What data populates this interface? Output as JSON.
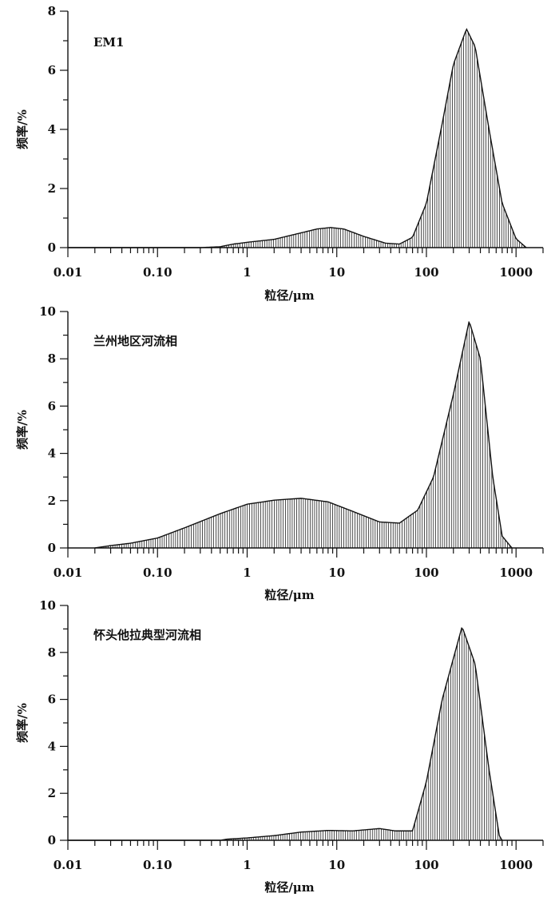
{
  "chart_data": [
    {
      "type": "area",
      "title": "EM1",
      "xlabel": "粒径/μm",
      "ylabel": "频率/%",
      "xscale": "log",
      "xlim": [
        0.01,
        2000
      ],
      "ylim": [
        0,
        8
      ],
      "x_ticks": [
        "0.01",
        "0.10",
        "1",
        "10",
        "100",
        "1000"
      ],
      "y_ticks": [
        "0",
        "2",
        "4",
        "6",
        "8"
      ],
      "grid": false,
      "points": [
        [
          0.01,
          0
        ],
        [
          0.3,
          0
        ],
        [
          0.5,
          0.03
        ],
        [
          0.7,
          0.12
        ],
        [
          1,
          0.18
        ],
        [
          2,
          0.28
        ],
        [
          4,
          0.5
        ],
        [
          6,
          0.63
        ],
        [
          8.5,
          0.68
        ],
        [
          12,
          0.63
        ],
        [
          20,
          0.38
        ],
        [
          35,
          0.15
        ],
        [
          50,
          0.12
        ],
        [
          70,
          0.35
        ],
        [
          100,
          1.5
        ],
        [
          150,
          4.2
        ],
        [
          200,
          6.2
        ],
        [
          280,
          7.4
        ],
        [
          350,
          6.8
        ],
        [
          500,
          4.0
        ],
        [
          700,
          1.5
        ],
        [
          1000,
          0.3
        ],
        [
          1300,
          0
        ]
      ]
    },
    {
      "type": "area",
      "title": "兰州地区河流相",
      "xlabel": "粒径/μm",
      "ylabel": "频率/%",
      "xscale": "log",
      "xlim": [
        0.01,
        2000
      ],
      "ylim": [
        0,
        10
      ],
      "x_ticks": [
        "0.01",
        "0.10",
        "1",
        "10",
        "100",
        "1000"
      ],
      "y_ticks": [
        "0",
        "2",
        "4",
        "6",
        "8",
        "10"
      ],
      "grid": false,
      "points": [
        [
          0.02,
          0
        ],
        [
          0.03,
          0.1
        ],
        [
          0.05,
          0.2
        ],
        [
          0.1,
          0.42
        ],
        [
          0.2,
          0.85
        ],
        [
          0.5,
          1.45
        ],
        [
          1,
          1.85
        ],
        [
          2,
          2.02
        ],
        [
          4,
          2.1
        ],
        [
          8,
          1.95
        ],
        [
          15,
          1.55
        ],
        [
          30,
          1.1
        ],
        [
          50,
          1.05
        ],
        [
          80,
          1.6
        ],
        [
          120,
          3.0
        ],
        [
          200,
          6.5
        ],
        [
          300,
          9.6
        ],
        [
          400,
          8.0
        ],
        [
          550,
          3.0
        ],
        [
          700,
          0.5
        ],
        [
          900,
          0
        ]
      ]
    },
    {
      "type": "area",
      "title": "怀头他拉典型河流相",
      "xlabel": "粒径/μm",
      "ylabel": "频率/%",
      "xscale": "log",
      "xlim": [
        0.01,
        2000
      ],
      "ylim": [
        0,
        10
      ],
      "x_ticks": [
        "0.01",
        "0.10",
        "1",
        "10",
        "100",
        "1000"
      ],
      "y_ticks": [
        "0",
        "2",
        "4",
        "6",
        "8",
        "10"
      ],
      "grid": false,
      "points": [
        [
          0.01,
          0
        ],
        [
          0.5,
          0
        ],
        [
          0.6,
          0.05
        ],
        [
          1,
          0.1
        ],
        [
          2,
          0.2
        ],
        [
          4,
          0.35
        ],
        [
          8,
          0.42
        ],
        [
          15,
          0.4
        ],
        [
          30,
          0.5
        ],
        [
          45,
          0.4
        ],
        [
          70,
          0.4
        ],
        [
          100,
          2.5
        ],
        [
          150,
          6.0
        ],
        [
          250,
          9.1
        ],
        [
          350,
          7.5
        ],
        [
          500,
          3.0
        ],
        [
          650,
          0.2
        ],
        [
          700,
          0
        ]
      ]
    }
  ]
}
